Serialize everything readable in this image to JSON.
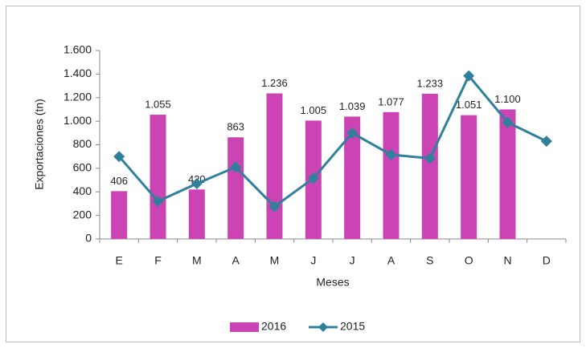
{
  "chart_data": {
    "type": "bar_line",
    "y_label": "Exportaciones (tn)",
    "x_label": "Meses",
    "categories": [
      "E",
      "F",
      "M",
      "A",
      "M",
      "J",
      "J",
      "A",
      "S",
      "O",
      "N",
      "D"
    ],
    "series": [
      {
        "name": "2016",
        "type": "bar",
        "color": "#cc44b4",
        "values": [
          406,
          1055,
          420,
          863,
          1236,
          1005,
          1039,
          1077,
          1233,
          1051,
          1100,
          null
        ],
        "value_labels": [
          "406",
          "1.055",
          "420",
          "863",
          "1.236",
          "1.005",
          "1.039",
          "1.077",
          "1.233",
          "1.051",
          "1.100",
          null
        ]
      },
      {
        "name": "2015",
        "type": "line",
        "color": "#31809b",
        "values": [
          700,
          320,
          470,
          610,
          275,
          515,
          900,
          715,
          685,
          1385,
          990,
          830
        ]
      }
    ],
    "ylim": [
      0,
      1600
    ],
    "yticks": [
      0,
      200,
      400,
      600,
      800,
      {
        "value": 1000,
        "label": "1.000"
      },
      {
        "value": 1200,
        "label": "1.200"
      },
      {
        "value": 1400,
        "label": "1.400"
      },
      {
        "value": 1600,
        "label": "1.600"
      }
    ],
    "grid": false,
    "legend": "bottom"
  }
}
